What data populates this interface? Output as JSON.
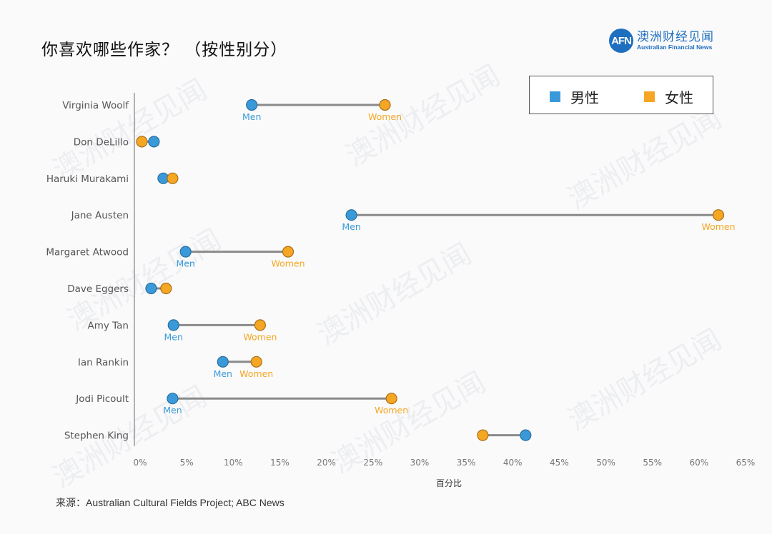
{
  "header": {
    "title": "你喜欢哪些作家？ （按性别分）",
    "logo": {
      "mark": "AFN",
      "name_cn": "澳洲财经见闻",
      "name_en": "Australian Financial News",
      "color": "#1e6fbf"
    }
  },
  "watermark": {
    "text_cn": "澳洲财经见闻",
    "text_en": "Australian Financial News"
  },
  "source": "来源：Australian Cultural Fields Project; ABC News",
  "chart_data": {
    "type": "dumbbell",
    "title": "你喜欢哪些作家？ （按性别分）",
    "xlabel": "百分比",
    "ylabel": "",
    "xlim": [
      0,
      65
    ],
    "x_ticks": [
      "0%",
      "5%",
      "10%",
      "15%",
      "20%",
      "25%",
      "30%",
      "35%",
      "40%",
      "45%",
      "50%",
      "55%",
      "60%",
      "65%"
    ],
    "x_tick_values": [
      0,
      5,
      10,
      15,
      20,
      25,
      30,
      35,
      40,
      45,
      50,
      55,
      60,
      65
    ],
    "grid": false,
    "legend_position": "top-right",
    "legend": [
      {
        "name": "男性",
        "color": "#3a9ad9"
      },
      {
        "name": "女性",
        "color": "#f5a623"
      }
    ],
    "point_labels": {
      "men": "Men",
      "women": "Women"
    },
    "categories": [
      "Virginia Woolf",
      "Don DeLillo",
      "Haruki Murakami",
      "Jane Austen",
      "Margaret Atwood",
      "Dave Eggers",
      "Amy Tan",
      "Ian Rankin",
      "Jodi Picoult",
      "Stephen King"
    ],
    "series": [
      {
        "name": "男性",
        "key": "men",
        "color": "#3a9ad9",
        "values": [
          12.6,
          2.1,
          3.1,
          23.3,
          5.5,
          1.8,
          4.2,
          9.5,
          4.1,
          42.0
        ]
      },
      {
        "name": "女性",
        "key": "women",
        "color": "#f5a623",
        "values": [
          26.9,
          0.8,
          4.1,
          62.7,
          16.5,
          3.4,
          13.5,
          13.1,
          27.6,
          37.4
        ]
      }
    ],
    "show_point_labels": [
      true,
      false,
      false,
      true,
      true,
      false,
      true,
      true,
      true,
      false
    ]
  }
}
